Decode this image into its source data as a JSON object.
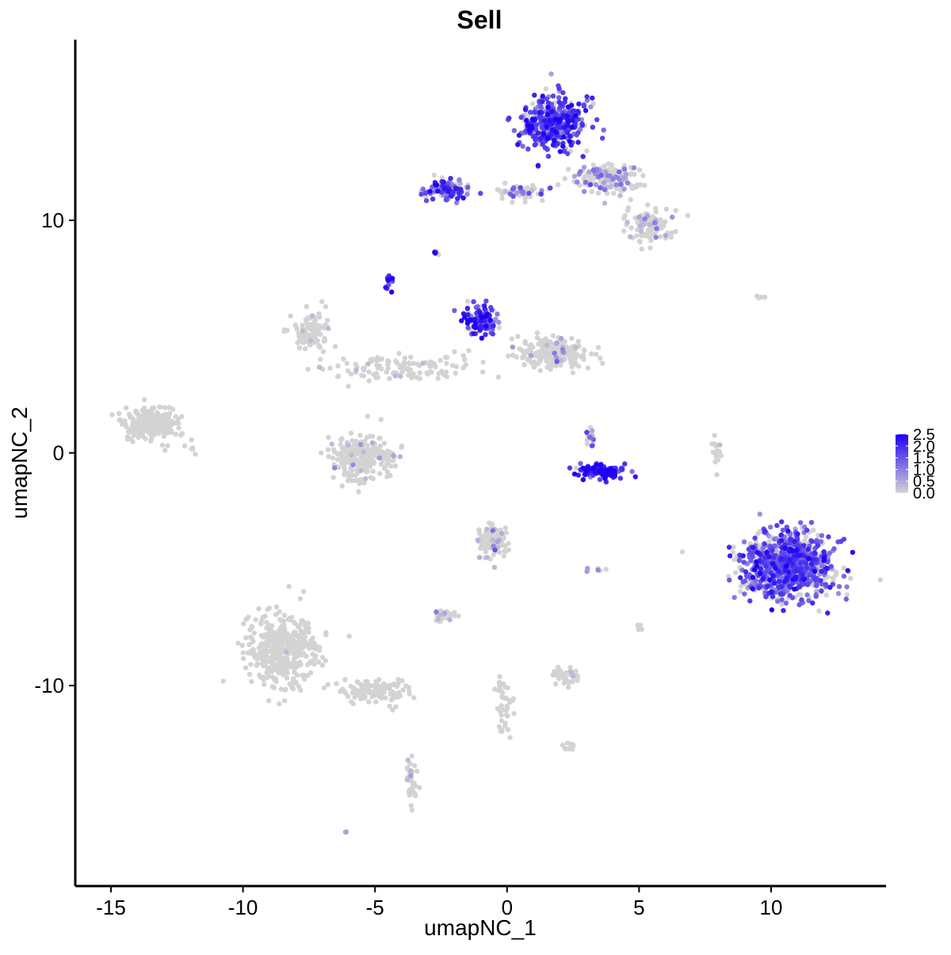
{
  "chart_data": {
    "type": "scatter",
    "title": "Sell",
    "xlabel": "umapNC_1",
    "ylabel": "umapNC_2",
    "xlim": [
      -16.5,
      14.5
    ],
    "ylim": [
      -18.5,
      17.5
    ],
    "xticks": [
      -15,
      -10,
      -5,
      0,
      5,
      10
    ],
    "xtick_labels": [
      "-15",
      "-10",
      "-5",
      "0",
      "5",
      "10"
    ],
    "yticks": [
      -10,
      0,
      10
    ],
    "ytick_labels": [
      "-10",
      "0",
      "10"
    ],
    "grid": false,
    "color_scale": {
      "low_color": "#d3d3d3",
      "high_color": "#1f00f5",
      "min": 0.0,
      "max": 2.5,
      "ticks": [
        0.0,
        0.5,
        1.0,
        1.5,
        2.0,
        2.5
      ],
      "tick_labels": [
        "0.0",
        "0.5",
        "1.0",
        "1.5",
        "2.0",
        "2.5"
      ],
      "legend_position": "right"
    },
    "clusters": [
      {
        "center": [
          1.8,
          14.2
        ],
        "spread": [
          1.1,
          1.0
        ],
        "count": 420,
        "expr_mean": 1.6,
        "expr_frac": 0.8
      },
      {
        "center": [
          3.8,
          11.8
        ],
        "spread": [
          1.2,
          0.6
        ],
        "count": 160,
        "expr_mean": 0.7,
        "expr_frac": 0.3
      },
      {
        "center": [
          5.3,
          9.8
        ],
        "spread": [
          0.8,
          0.6
        ],
        "count": 110,
        "expr_mean": 0.3,
        "expr_frac": 0.1
      },
      {
        "center": [
          -2.2,
          11.3
        ],
        "spread": [
          0.8,
          0.35
        ],
        "count": 110,
        "expr_mean": 1.5,
        "expr_frac": 0.7
      },
      {
        "center": [
          0.5,
          11.2
        ],
        "spread": [
          0.9,
          0.3
        ],
        "count": 60,
        "expr_mean": 0.8,
        "expr_frac": 0.3
      },
      {
        "center": [
          -2.7,
          8.6
        ],
        "spread": [
          0.1,
          0.1
        ],
        "count": 6,
        "expr_mean": 1.2,
        "expr_frac": 0.8
      },
      {
        "center": [
          -4.5,
          7.3
        ],
        "spread": [
          0.2,
          0.3
        ],
        "count": 14,
        "expr_mean": 2.2,
        "expr_frac": 0.9
      },
      {
        "center": [
          -1.0,
          5.7
        ],
        "spread": [
          0.6,
          0.6
        ],
        "count": 110,
        "expr_mean": 1.7,
        "expr_frac": 0.8
      },
      {
        "center": [
          1.8,
          4.3
        ],
        "spread": [
          1.2,
          0.6
        ],
        "count": 220,
        "expr_mean": 0.2,
        "expr_frac": 0.05
      },
      {
        "center": [
          -7.4,
          5.2
        ],
        "spread": [
          0.7,
          0.8
        ],
        "count": 110,
        "expr_mean": 0.2,
        "expr_frac": 0.05
      },
      {
        "center": [
          -4.0,
          3.6
        ],
        "spread": [
          2.3,
          0.5
        ],
        "count": 120,
        "expr_mean": 0.1,
        "expr_frac": 0.03
      },
      {
        "center": [
          -5.5,
          -0.2
        ],
        "spread": [
          1.1,
          0.9
        ],
        "count": 260,
        "expr_mean": 0.3,
        "expr_frac": 0.05
      },
      {
        "center": [
          -13.5,
          1.3
        ],
        "spread": [
          0.9,
          0.7
        ],
        "count": 230,
        "expr_mean": 0.0,
        "expr_frac": 0.0
      },
      {
        "center": [
          3.6,
          -0.8
        ],
        "spread": [
          0.8,
          0.3
        ],
        "count": 110,
        "expr_mean": 2.1,
        "expr_frac": 0.95
      },
      {
        "center": [
          3.2,
          0.8
        ],
        "spread": [
          0.2,
          0.5
        ],
        "count": 16,
        "expr_mean": 1.0,
        "expr_frac": 0.4
      },
      {
        "center": [
          10.6,
          -4.8
        ],
        "spread": [
          1.5,
          1.3
        ],
        "count": 900,
        "expr_mean": 1.4,
        "expr_frac": 0.7
      },
      {
        "center": [
          -0.5,
          -3.8
        ],
        "spread": [
          0.6,
          0.6
        ],
        "count": 120,
        "expr_mean": 0.3,
        "expr_frac": 0.1
      },
      {
        "center": [
          -8.5,
          -8.5
        ],
        "spread": [
          1.2,
          1.4
        ],
        "count": 420,
        "expr_mean": 0.0,
        "expr_frac": 0.01
      },
      {
        "center": [
          -5.0,
          -10.2
        ],
        "spread": [
          1.1,
          0.5
        ],
        "count": 120,
        "expr_mean": 0.0,
        "expr_frac": 0.0
      },
      {
        "center": [
          -3.6,
          -14.0
        ],
        "spread": [
          0.2,
          1.2
        ],
        "count": 40,
        "expr_mean": 0.2,
        "expr_frac": 0.05
      },
      {
        "center": [
          -2.3,
          -7.0
        ],
        "spread": [
          0.4,
          0.2
        ],
        "count": 25,
        "expr_mean": 0.6,
        "expr_frac": 0.3
      },
      {
        "center": [
          2.3,
          -9.6
        ],
        "spread": [
          0.6,
          0.3
        ],
        "count": 45,
        "expr_mean": 0.2,
        "expr_frac": 0.05
      },
      {
        "center": [
          -0.1,
          -10.8
        ],
        "spread": [
          0.3,
          1.3
        ],
        "count": 40,
        "expr_mean": 0.0,
        "expr_frac": 0.0
      },
      {
        "center": [
          2.4,
          -12.6
        ],
        "spread": [
          0.3,
          0.2
        ],
        "count": 12,
        "expr_mean": 0.0,
        "expr_frac": 0.0
      },
      {
        "center": [
          7.9,
          0.0
        ],
        "spread": [
          0.15,
          0.8
        ],
        "count": 14,
        "expr_mean": 0.1,
        "expr_frac": 0.05
      },
      {
        "center": [
          3.3,
          -5.0
        ],
        "spread": [
          0.3,
          0.1
        ],
        "count": 6,
        "expr_mean": 0.8,
        "expr_frac": 0.4
      },
      {
        "center": [
          9.6,
          6.7
        ],
        "spread": [
          0.3,
          0.1
        ],
        "count": 4,
        "expr_mean": 0.5,
        "expr_frac": 0.3
      },
      {
        "center": [
          5.0,
          -7.5
        ],
        "spread": [
          0.1,
          0.3
        ],
        "count": 6,
        "expr_mean": 0.0,
        "expr_frac": 0.0
      },
      {
        "center": [
          -6.1,
          -16.3
        ],
        "spread": [
          0.05,
          0.05
        ],
        "count": 2,
        "expr_mean": 0.8,
        "expr_frac": 0.6
      },
      {
        "center": [
          -11.9,
          0.2
        ],
        "spread": [
          0.2,
          0.2
        ],
        "count": 6,
        "expr_mean": 0.5,
        "expr_frac": 0.3
      }
    ]
  }
}
